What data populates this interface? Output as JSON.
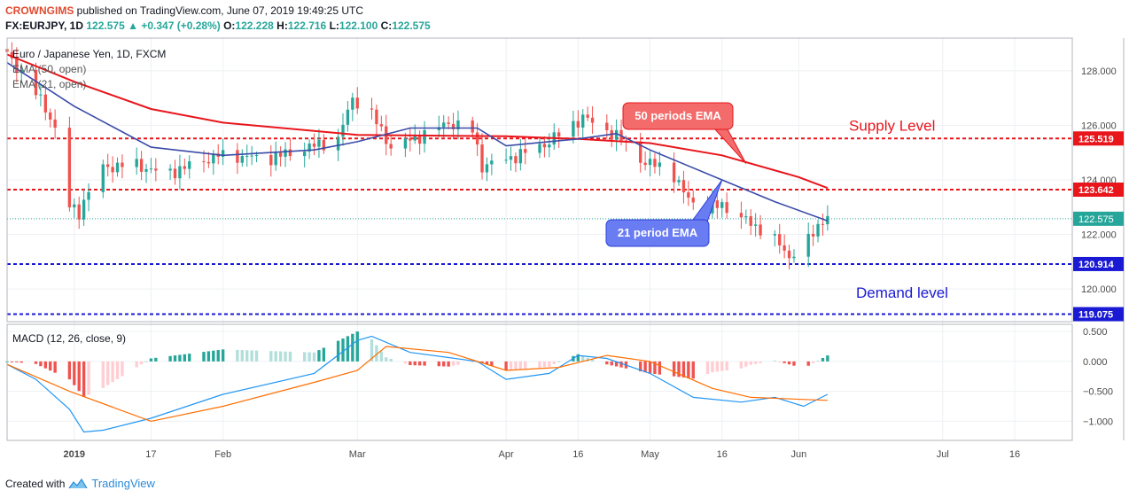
{
  "header": {
    "publisher": "CROWNGIMS",
    "published_text": "published on TradingView.com, June 07, 2019 19:49:25 UTC",
    "symbol": "FX:EURJPY, 1D",
    "last": "122.575",
    "change": "+0.347 (+0.28%)",
    "o_label": "O:",
    "o": "122.228",
    "h_label": "H:",
    "h": "122.716",
    "l_label": "L:",
    "l": "122.100",
    "c_label": "C:",
    "c": "122.575"
  },
  "footer": {
    "created_with": "Created with",
    "brand": "TradingView"
  },
  "colors": {
    "up": "#26a69a",
    "down": "#ef5350",
    "ema50": "#e8151b",
    "ema21": "#3a4ba8",
    "supply": "#e8151b",
    "demand": "#1a1ad4",
    "macd": "#2196f3",
    "signal": "#ff6d00"
  },
  "chart_data": [
    {
      "type": "candlestick",
      "title": "Euro / Japanese Yen, 1D, FXCM",
      "legend": [
        "EMA (50, open)",
        "EMA (21, open)"
      ],
      "y_range": [
        118.8,
        129.2
      ],
      "x_range": [
        "2018-12-18",
        "2019-07-28"
      ],
      "y_ticks": [
        "128.000",
        "126.000",
        "124.000",
        "122.000",
        "120.000"
      ],
      "x_ticks": [
        {
          "date": "2019-01-01",
          "label": "2019"
        },
        {
          "date": "2019-01-17",
          "label": "17"
        },
        {
          "date": "2019-02-01",
          "label": "Feb"
        },
        {
          "date": "2019-03-01",
          "label": "Mar"
        },
        {
          "date": "2019-04-01",
          "label": "Apr"
        },
        {
          "date": "2019-04-16",
          "label": "16"
        },
        {
          "date": "2019-05-01",
          "label": "May"
        },
        {
          "date": "2019-05-16",
          "label": "16"
        },
        {
          "date": "2019-06-01",
          "label": "Jun"
        },
        {
          "date": "2019-07-01",
          "label": "Jul"
        },
        {
          "date": "2019-07-16",
          "label": "16"
        }
      ],
      "levels": [
        {
          "name": "supply",
          "value": 125.519,
          "label": "125.519",
          "text": "Supply Level"
        },
        {
          "name": "resistance",
          "value": 123.642,
          "label": "123.642"
        },
        {
          "name": "demand",
          "value": 120.914,
          "label": "120.914",
          "text": "Demand level"
        },
        {
          "name": "support",
          "value": 119.075,
          "label": "119.075"
        }
      ],
      "last_price": {
        "value": 122.575,
        "label": "122.575"
      },
      "annotations": [
        {
          "text": "50 periods EMA",
          "target": {
            "date": "2019-05-21",
            "value": 124.6
          }
        },
        {
          "text": "21 period EMA",
          "target": {
            "date": "2019-05-16",
            "value": 124.0
          }
        }
      ],
      "anchors": [
        {
          "date": "2018-12-18",
          "value": 128.8
        },
        {
          "date": "2018-12-24",
          "value": 127.5
        },
        {
          "date": "2018-12-28",
          "value": 126.3
        },
        {
          "date": "2018-12-31",
          "value": 125.0
        },
        {
          "date": "2019-01-01",
          "value": 123.0
        },
        {
          "date": "2019-01-03",
          "value": 122.8
        },
        {
          "date": "2019-01-07",
          "value": 124.4
        },
        {
          "date": "2019-01-14",
          "value": 124.6
        },
        {
          "date": "2019-01-21",
          "value": 124.2
        },
        {
          "date": "2019-02-01",
          "value": 124.9
        },
        {
          "date": "2019-02-12",
          "value": 124.8
        },
        {
          "date": "2019-02-20",
          "value": 125.2
        },
        {
          "date": "2019-02-26",
          "value": 125.5
        },
        {
          "date": "2019-03-01",
          "value": 127.0
        },
        {
          "date": "2019-03-05",
          "value": 126.4
        },
        {
          "date": "2019-03-09",
          "value": 125.2
        },
        {
          "date": "2019-03-15",
          "value": 125.6
        },
        {
          "date": "2019-03-21",
          "value": 126.1
        },
        {
          "date": "2019-03-26",
          "value": 125.8
        },
        {
          "date": "2019-03-28",
          "value": 124.5
        },
        {
          "date": "2019-04-03",
          "value": 124.8
        },
        {
          "date": "2019-04-10",
          "value": 125.3
        },
        {
          "date": "2019-04-15",
          "value": 125.9
        },
        {
          "date": "2019-04-18",
          "value": 126.3
        },
        {
          "date": "2019-04-22",
          "value": 125.9
        },
        {
          "date": "2019-04-26",
          "value": 125.5
        },
        {
          "date": "2019-05-01",
          "value": 124.6
        },
        {
          "date": "2019-05-06",
          "value": 124.5
        },
        {
          "date": "2019-05-09",
          "value": 123.5
        },
        {
          "date": "2019-05-13",
          "value": 122.9
        },
        {
          "date": "2019-05-17",
          "value": 123.1
        },
        {
          "date": "2019-05-21",
          "value": 122.6
        },
        {
          "date": "2019-05-27",
          "value": 122.0
        },
        {
          "date": "2019-05-31",
          "value": 121.2
        },
        {
          "date": "2019-06-03",
          "value": 121.5
        },
        {
          "date": "2019-06-07",
          "value": 122.575
        }
      ],
      "ema50": [
        {
          "date": "2018-12-18",
          "value": 128.6
        },
        {
          "date": "2019-01-01",
          "value": 127.6
        },
        {
          "date": "2019-01-17",
          "value": 126.6
        },
        {
          "date": "2019-02-01",
          "value": 126.1
        },
        {
          "date": "2019-03-01",
          "value": 125.65
        },
        {
          "date": "2019-04-01",
          "value": 125.6
        },
        {
          "date": "2019-04-16",
          "value": 125.5
        },
        {
          "date": "2019-05-01",
          "value": 125.35
        },
        {
          "date": "2019-05-16",
          "value": 124.9
        },
        {
          "date": "2019-06-01",
          "value": 124.1
        },
        {
          "date": "2019-06-07",
          "value": 123.7
        }
      ],
      "ema21": [
        {
          "date": "2018-12-18",
          "value": 128.3
        },
        {
          "date": "2019-01-01",
          "value": 126.7
        },
        {
          "date": "2019-01-17",
          "value": 125.2
        },
        {
          "date": "2019-02-01",
          "value": 124.9
        },
        {
          "date": "2019-02-20",
          "value": 125.1
        },
        {
          "date": "2019-03-01",
          "value": 125.4
        },
        {
          "date": "2019-03-12",
          "value": 125.9
        },
        {
          "date": "2019-03-26",
          "value": 125.9
        },
        {
          "date": "2019-04-01",
          "value": 125.25
        },
        {
          "date": "2019-04-16",
          "value": 125.5
        },
        {
          "date": "2019-04-24",
          "value": 125.7
        },
        {
          "date": "2019-05-01",
          "value": 125.1
        },
        {
          "date": "2019-05-16",
          "value": 124.0
        },
        {
          "date": "2019-05-27",
          "value": 123.2
        },
        {
          "date": "2019-06-07",
          "value": 122.5
        }
      ]
    },
    {
      "type": "macd",
      "title": "MACD (12, 26, close, 9)",
      "y_range": [
        -1.32,
        0.62
      ],
      "y_ticks": [
        "0.500",
        "0.000",
        "−0.500",
        "−1.000"
      ],
      "macd_line": [
        {
          "date": "2018-12-18",
          "value": -0.05
        },
        {
          "date": "2018-12-24",
          "value": -0.3
        },
        {
          "date": "2018-12-31",
          "value": -0.8
        },
        {
          "date": "2019-01-03",
          "value": -1.18
        },
        {
          "date": "2019-01-07",
          "value": -1.15
        },
        {
          "date": "2019-01-17",
          "value": -0.95
        },
        {
          "date": "2019-02-01",
          "value": -0.55
        },
        {
          "date": "2019-02-20",
          "value": -0.2
        },
        {
          "date": "2019-03-01",
          "value": 0.35
        },
        {
          "date": "2019-03-04",
          "value": 0.42
        },
        {
          "date": "2019-03-12",
          "value": 0.15
        },
        {
          "date": "2019-03-26",
          "value": 0.0
        },
        {
          "date": "2019-04-01",
          "value": -0.3
        },
        {
          "date": "2019-04-10",
          "value": -0.2
        },
        {
          "date": "2019-04-16",
          "value": 0.1
        },
        {
          "date": "2019-04-22",
          "value": 0.05
        },
        {
          "date": "2019-05-01",
          "value": -0.2
        },
        {
          "date": "2019-05-10",
          "value": -0.6
        },
        {
          "date": "2019-05-20",
          "value": -0.68
        },
        {
          "date": "2019-05-27",
          "value": -0.6
        },
        {
          "date": "2019-06-02",
          "value": -0.75
        },
        {
          "date": "2019-06-07",
          "value": -0.55
        }
      ],
      "signal_line": [
        {
          "date": "2018-12-18",
          "value": -0.05
        },
        {
          "date": "2018-12-31",
          "value": -0.5
        },
        {
          "date": "2019-01-17",
          "value": -1.0
        },
        {
          "date": "2019-02-01",
          "value": -0.75
        },
        {
          "date": "2019-02-20",
          "value": -0.35
        },
        {
          "date": "2019-03-01",
          "value": -0.15
        },
        {
          "date": "2019-03-07",
          "value": 0.25
        },
        {
          "date": "2019-03-20",
          "value": 0.15
        },
        {
          "date": "2019-04-01",
          "value": -0.15
        },
        {
          "date": "2019-04-12",
          "value": -0.1
        },
        {
          "date": "2019-04-22",
          "value": 0.1
        },
        {
          "date": "2019-05-01",
          "value": 0.0
        },
        {
          "date": "2019-05-14",
          "value": -0.45
        },
        {
          "date": "2019-05-22",
          "value": -0.6
        },
        {
          "date": "2019-06-07",
          "value": -0.65
        }
      ]
    }
  ]
}
